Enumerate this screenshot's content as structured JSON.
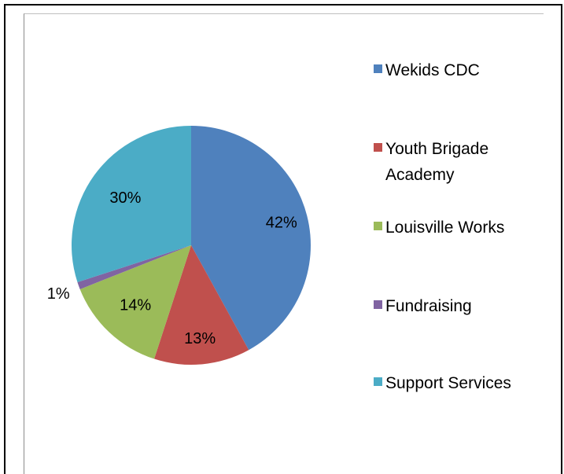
{
  "chart_data": {
    "type": "pie",
    "title": "",
    "legend_position": "right",
    "slices": [
      {
        "name": "Wekids CDC",
        "value": 42,
        "label": "42%",
        "color": "#4f81bd"
      },
      {
        "name": "Youth Brigade Academy",
        "value": 13,
        "label": "13%",
        "color": "#c0504d"
      },
      {
        "name": "Louisville Works",
        "value": 14,
        "label": "14%",
        "color": "#9bbb59"
      },
      {
        "name": "Fundraising",
        "value": 1,
        "label": "1%",
        "color": "#8064a2"
      },
      {
        "name": "Support Services",
        "value": 30,
        "label": "30%",
        "color": "#4bacc6"
      }
    ],
    "legend": [
      {
        "lines": [
          "Wekids CDC"
        ]
      },
      {
        "lines": [
          "Youth Brigade",
          "Academy"
        ]
      },
      {
        "lines": [
          "Louisville Works"
        ]
      },
      {
        "lines": [
          "Fundraising"
        ]
      },
      {
        "lines": [
          "Support Services"
        ]
      }
    ]
  }
}
